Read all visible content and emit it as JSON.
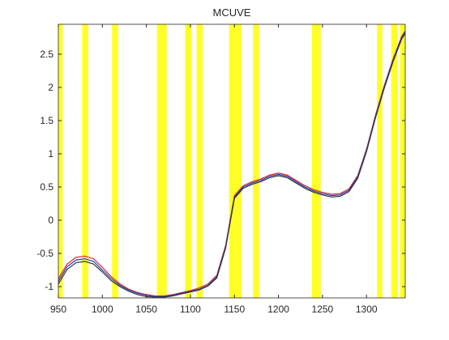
{
  "chart_data": {
    "type": "line",
    "title": "MCUVE",
    "x": [
      950,
      960,
      970,
      980,
      990,
      1000,
      1010,
      1020,
      1030,
      1040,
      1050,
      1060,
      1070,
      1080,
      1090,
      1100,
      1110,
      1120,
      1130,
      1140,
      1150,
      1160,
      1170,
      1180,
      1190,
      1200,
      1210,
      1220,
      1230,
      1240,
      1250,
      1260,
      1270,
      1280,
      1290,
      1300,
      1310,
      1320,
      1330,
      1340,
      1344
    ],
    "series": [
      {
        "color": "#d62728",
        "values": [
          -0.88,
          -0.66,
          -0.56,
          -0.54,
          -0.58,
          -0.71,
          -0.85,
          -0.96,
          -1.04,
          -1.09,
          -1.12,
          -1.14,
          -1.14,
          -1.12,
          -1.09,
          -1.06,
          -1.02,
          -0.96,
          -0.83,
          -0.38,
          0.37,
          0.52,
          0.58,
          0.62,
          0.68,
          0.71,
          0.68,
          0.6,
          0.52,
          0.46,
          0.42,
          0.39,
          0.4,
          0.47,
          0.67,
          1.07,
          1.57,
          2.02,
          2.42,
          2.77,
          2.85
        ]
      },
      {
        "color": "#1f3fbf",
        "values": [
          -0.92,
          -0.7,
          -0.6,
          -0.58,
          -0.62,
          -0.75,
          -0.88,
          -0.98,
          -1.05,
          -1.1,
          -1.13,
          -1.15,
          -1.15,
          -1.13,
          -1.1,
          -1.07,
          -1.04,
          -0.98,
          -0.85,
          -0.4,
          0.35,
          0.5,
          0.56,
          0.6,
          0.66,
          0.69,
          0.66,
          0.58,
          0.5,
          0.44,
          0.4,
          0.37,
          0.38,
          0.45,
          0.65,
          1.05,
          1.55,
          2.0,
          2.4,
          2.75,
          2.83
        ]
      },
      {
        "color": "#333333",
        "values": [
          -0.96,
          -0.74,
          -0.64,
          -0.62,
          -0.66,
          -0.78,
          -0.91,
          -1.0,
          -1.07,
          -1.12,
          -1.15,
          -1.16,
          -1.16,
          -1.14,
          -1.11,
          -1.08,
          -1.05,
          -0.99,
          -0.87,
          -0.42,
          0.33,
          0.48,
          0.54,
          0.58,
          0.64,
          0.67,
          0.64,
          0.56,
          0.48,
          0.42,
          0.38,
          0.35,
          0.36,
          0.43,
          0.63,
          1.03,
          1.53,
          1.98,
          2.38,
          2.73,
          2.81
        ]
      }
    ],
    "bands": [
      [
        950,
        955
      ],
      [
        977,
        984
      ],
      [
        1011,
        1018
      ],
      [
        1062,
        1073
      ],
      [
        1094,
        1101
      ],
      [
        1107,
        1114
      ],
      [
        1144,
        1158
      ],
      [
        1171,
        1178
      ],
      [
        1238,
        1248
      ],
      [
        1312,
        1318
      ],
      [
        1328,
        1335
      ],
      [
        1338,
        1344
      ]
    ],
    "band_color": "#ffff00",
    "xlim": [
      950,
      1344
    ],
    "ylim": [
      -1.17,
      2.95
    ],
    "xticks": [
      950,
      1000,
      1050,
      1100,
      1150,
      1200,
      1250,
      1300
    ],
    "yticks": [
      -1,
      -0.5,
      0,
      0.5,
      1,
      1.5,
      2,
      2.5
    ]
  }
}
